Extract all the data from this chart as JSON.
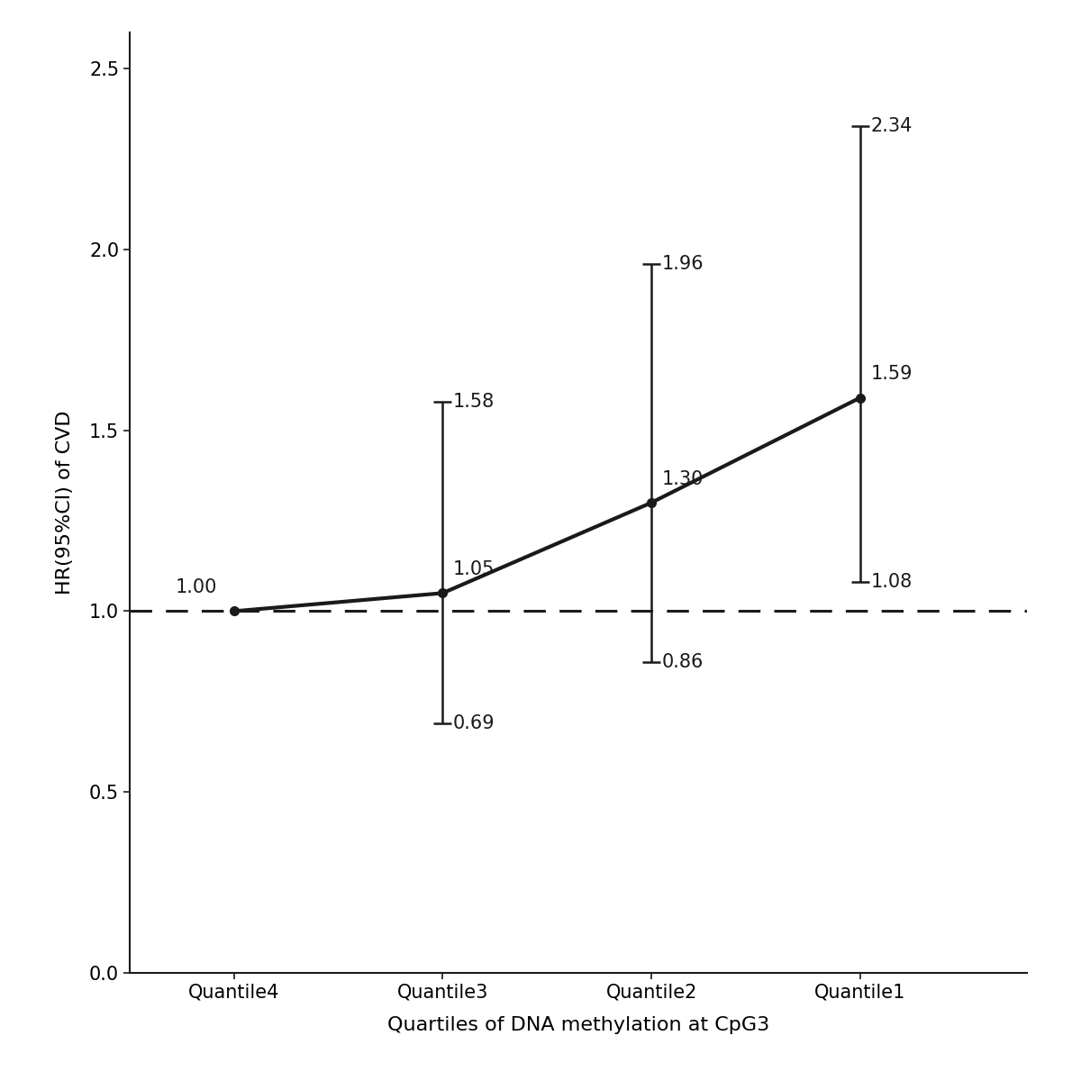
{
  "x_labels": [
    "Quantile4",
    "Quantile3",
    "Quantile2",
    "Quantile1"
  ],
  "x_positions": [
    1,
    2,
    3,
    4
  ],
  "hr": [
    1.0,
    1.05,
    1.3,
    1.59
  ],
  "ci_lower": [
    1.0,
    0.69,
    0.86,
    1.08
  ],
  "ci_upper": [
    1.0,
    1.58,
    1.96,
    2.34
  ],
  "hr_labels": [
    "1.00",
    "1.05",
    "1.30",
    "1.59"
  ],
  "ci_lower_labels": [
    "",
    "0.69",
    "0.86",
    "1.08"
  ],
  "ci_upper_labels": [
    "",
    "1.58",
    "1.96",
    "2.34"
  ],
  "xlabel": "Quartiles of DNA methylation at CpG3",
  "ylabel": "HR(95%CI) of CVD",
  "ylim": [
    0.0,
    2.6
  ],
  "yticks": [
    0.0,
    0.5,
    1.0,
    1.5,
    2.0,
    2.5
  ],
  "reference_line": 1.0,
  "line_color": "#1a1a1a",
  "background_color": "#ffffff",
  "font_size_labels": 16,
  "font_size_ticks": 15,
  "annotation_fontsize": 15
}
